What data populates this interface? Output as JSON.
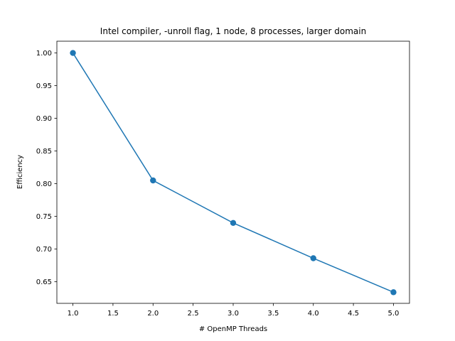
{
  "chart_data": {
    "type": "line",
    "title": "Intel compiler, -unroll flag, 1 node, 8 processes, larger domain",
    "xlabel": "# OpenMP Threads",
    "ylabel": "Efficiency",
    "x": [
      1,
      2,
      3,
      4,
      5
    ],
    "series": [
      {
        "values": [
          1.0,
          0.805,
          0.74,
          0.686,
          0.634
        ]
      }
    ],
    "xlim": [
      0.8,
      5.2
    ],
    "ylim": [
      0.617,
      1.018
    ],
    "xticks": [
      1.0,
      1.5,
      2.0,
      2.5,
      3.0,
      3.5,
      4.0,
      4.5,
      5.0
    ],
    "xtick_labels": [
      "1.0",
      "1.5",
      "2.0",
      "2.5",
      "3.0",
      "3.5",
      "4.0",
      "4.5",
      "5.0"
    ],
    "yticks": [
      0.65,
      0.7,
      0.75,
      0.8,
      0.85,
      0.9,
      0.95,
      1.0
    ],
    "ytick_labels": [
      "0.65",
      "0.70",
      "0.75",
      "0.80",
      "0.85",
      "0.90",
      "0.95",
      "1.00"
    ],
    "grid": false,
    "markers": "circle",
    "line_color": "#1f77b4"
  }
}
